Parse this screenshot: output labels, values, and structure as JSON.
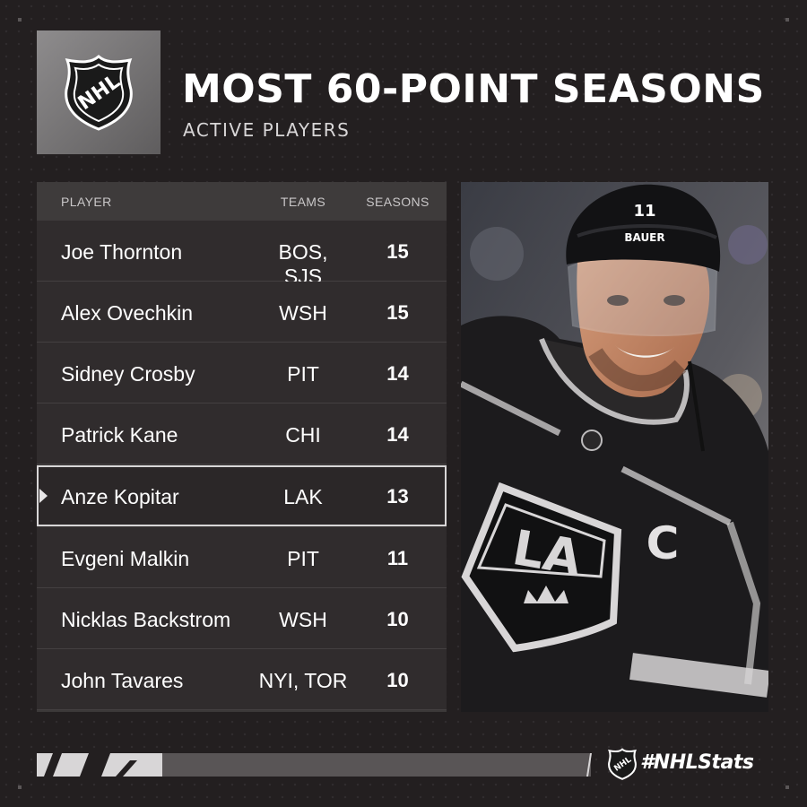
{
  "brand": {
    "logo_text": "NHL"
  },
  "header": {
    "title": "MOST 60-POINT SEASONS",
    "subtitle": "ACTIVE PLAYERS"
  },
  "table": {
    "columns": {
      "player": "PLAYER",
      "teams": "TEAMS",
      "seasons": "SEASONS"
    },
    "rows": [
      {
        "player": "Joe Thornton",
        "teams": "BOS, SJS",
        "seasons": "15"
      },
      {
        "player": "Alex Ovechkin",
        "teams": "WSH",
        "seasons": "15"
      },
      {
        "player": "Sidney Crosby",
        "teams": "PIT",
        "seasons": "14"
      },
      {
        "player": "Patrick Kane",
        "teams": "CHI",
        "seasons": "14"
      },
      {
        "player": "Anze Kopitar",
        "teams": "LAK",
        "seasons": "13"
      },
      {
        "player": "Evgeni Malkin",
        "teams": "PIT",
        "seasons": "11"
      },
      {
        "player": "Nicklas Backstrom",
        "teams": "WSH",
        "seasons": "10"
      },
      {
        "player": "John Tavares",
        "teams": "NYI, TOR",
        "seasons": "10"
      }
    ],
    "highlighted_row": 4
  },
  "photo": {
    "jersey_crest": "LA",
    "captain_letter": "C",
    "helmet_brand": "BAUER",
    "helmet_number": "11"
  },
  "footer": {
    "hashtag": "#NHLStats"
  },
  "colors": {
    "background": "#231f20",
    "row": "#302c2d",
    "highlight_border": "#d8d6d7",
    "logo_box": "#7a7879"
  }
}
